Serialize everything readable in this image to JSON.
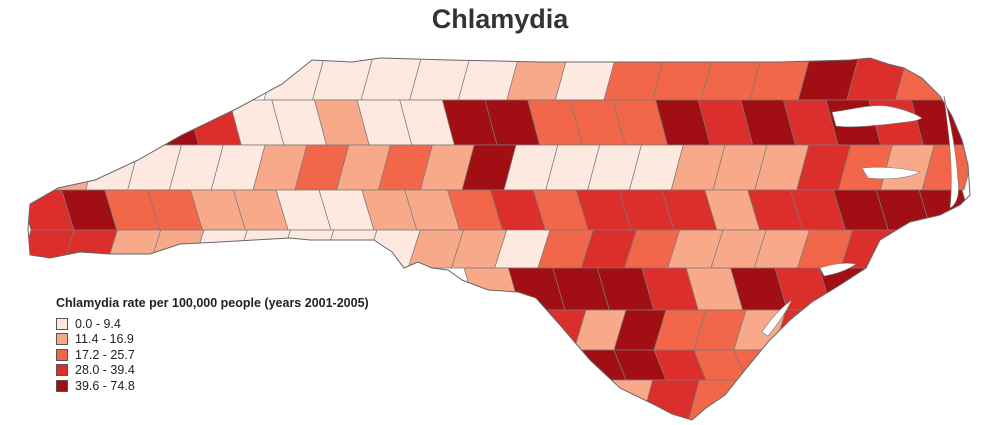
{
  "title": "Chlamydia",
  "legend": {
    "title": "Chlamydia rate per 100,000 people (years 2001-2005)",
    "items": [
      {
        "label": "0.0 - 9.4",
        "color": "#fde9df"
      },
      {
        "label": "11.4 - 16.9",
        "color": "#f8a98a"
      },
      {
        "label": "17.2 - 25.7",
        "color": "#f26649"
      },
      {
        "label": "28.0 - 39.4",
        "color": "#dc2e2a"
      },
      {
        "label": "39.6 - 74.8",
        "color": "#a10f14"
      }
    ]
  },
  "map": {
    "outline_color": "#7a7a7a",
    "water_color": "#ffffff",
    "county_classes": [
      0,
      0,
      0,
      0,
      0,
      1,
      0,
      2,
      2,
      2,
      2,
      4,
      3,
      2,
      4,
      3,
      0,
      0,
      1,
      0,
      0,
      4,
      4,
      2,
      2,
      2,
      4,
      3,
      4,
      3,
      4,
      3,
      4,
      1,
      0,
      0,
      0,
      0,
      1,
      2,
      1,
      2,
      1,
      4,
      0,
      0,
      0,
      0,
      1,
      1,
      1,
      3,
      2,
      1,
      2,
      3,
      4,
      2,
      2,
      1,
      1,
      0,
      0,
      1,
      1,
      2,
      3,
      2,
      3,
      3,
      3,
      1,
      3,
      3,
      4,
      4,
      4,
      3,
      3,
      1,
      1,
      0,
      0,
      0,
      0,
      0,
      1,
      1,
      0,
      2,
      3,
      2,
      1,
      1,
      1,
      2,
      3,
      1,
      4,
      4,
      4,
      3,
      1,
      4,
      3,
      4,
      3,
      1,
      4,
      2,
      2,
      1,
      3,
      4,
      4,
      3,
      2,
      2,
      1,
      3,
      2,
      1,
      2
    ]
  }
}
